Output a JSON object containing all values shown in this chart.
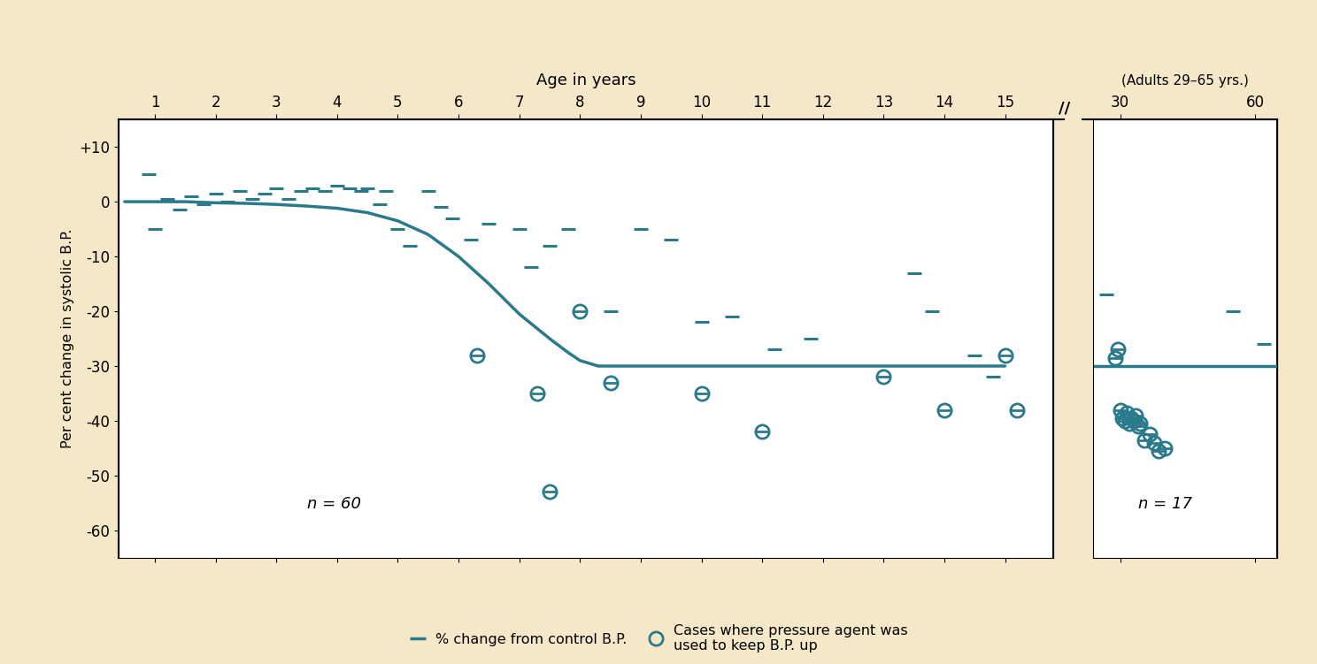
{
  "background_color": "#f5e8c8",
  "plot_bg_color": "#ffffff",
  "color": "#2b7a8c",
  "title_top": "Age in years",
  "title_top2": "(Adults 29–65 yrs.)",
  "ylabel": "Per cent change in systolic B.P.",
  "ylim": [
    -65,
    15
  ],
  "yticks": [
    10,
    0,
    -10,
    -20,
    -30,
    -40,
    -50,
    -60
  ],
  "ytick_labels": [
    "+10",
    "0",
    "-10",
    "-20",
    "-30",
    "-40",
    "-50",
    "-60"
  ],
  "xticks_child": [
    1,
    2,
    3,
    4,
    5,
    6,
    7,
    8,
    9,
    10,
    11,
    12,
    13,
    14,
    15
  ],
  "xticks_adult": [
    30,
    60
  ],
  "n_child_label": "n = 60",
  "n_adult_label": "n = 17",
  "legend_dash_label": "% change from control B.P.",
  "legend_circle_label": "Cases where pressure agent was\nused to keep B.P. up",
  "curve_x": [
    0.5,
    1.0,
    1.5,
    2.0,
    2.5,
    3.0,
    3.5,
    4.0,
    4.5,
    5.0,
    5.5,
    6.0,
    6.5,
    7.0,
    7.5,
    7.8,
    8.0,
    8.3,
    8.6,
    9.0,
    9.5,
    10.0,
    10.5,
    11.0,
    11.5,
    12.0,
    12.5,
    13.0,
    13.5,
    14.0,
    14.5,
    15.0
  ],
  "curve_y": [
    0.0,
    0.0,
    0.0,
    -0.2,
    -0.3,
    -0.5,
    -0.8,
    -1.2,
    -2.0,
    -3.5,
    -6.0,
    -10.0,
    -15.0,
    -20.5,
    -25.0,
    -27.5,
    -29.0,
    -30.0,
    -30.0,
    -30.0,
    -30.0,
    -30.0,
    -30.0,
    -30.0,
    -30.0,
    -30.0,
    -30.0,
    -30.0,
    -30.0,
    -30.0,
    -30.0,
    -30.0
  ],
  "dash_points": [
    [
      0.9,
      5.0
    ],
    [
      1.0,
      -5.0
    ],
    [
      1.2,
      0.5
    ],
    [
      1.4,
      -1.5
    ],
    [
      1.6,
      1.0
    ],
    [
      1.8,
      -0.5
    ],
    [
      2.0,
      1.5
    ],
    [
      2.2,
      0.0
    ],
    [
      2.4,
      2.0
    ],
    [
      2.6,
      0.5
    ],
    [
      2.8,
      1.5
    ],
    [
      3.0,
      2.5
    ],
    [
      3.2,
      0.5
    ],
    [
      3.4,
      2.0
    ],
    [
      3.6,
      2.5
    ],
    [
      3.8,
      2.0
    ],
    [
      4.0,
      3.0
    ],
    [
      4.2,
      2.5
    ],
    [
      4.4,
      2.0
    ],
    [
      4.5,
      2.5
    ],
    [
      4.7,
      -0.5
    ],
    [
      4.8,
      2.0
    ],
    [
      5.0,
      -5.0
    ],
    [
      5.2,
      -8.0
    ],
    [
      5.5,
      2.0
    ],
    [
      5.7,
      -1.0
    ],
    [
      5.9,
      -3.0
    ],
    [
      6.2,
      -7.0
    ],
    [
      6.5,
      -4.0
    ],
    [
      7.0,
      -5.0
    ],
    [
      7.2,
      -12.0
    ],
    [
      7.5,
      -8.0
    ],
    [
      7.8,
      -5.0
    ],
    [
      8.5,
      -20.0
    ],
    [
      9.0,
      -5.0
    ],
    [
      9.5,
      -7.0
    ],
    [
      10.0,
      -22.0
    ],
    [
      10.5,
      -21.0
    ],
    [
      11.2,
      -27.0
    ],
    [
      11.8,
      -25.0
    ],
    [
      13.5,
      -13.0
    ],
    [
      13.8,
      -20.0
    ],
    [
      14.5,
      -28.0
    ],
    [
      14.8,
      -32.0
    ],
    [
      27.0,
      -17.0
    ],
    [
      55.0,
      -20.0
    ],
    [
      62.0,
      -26.0
    ]
  ],
  "circle_points_child": [
    [
      6.3,
      -28.0
    ],
    [
      7.3,
      -35.0
    ],
    [
      7.5,
      -53.0
    ],
    [
      8.0,
      -20.0
    ],
    [
      8.5,
      -33.0
    ],
    [
      10.0,
      -35.0
    ],
    [
      11.0,
      -42.0
    ],
    [
      13.0,
      -32.0
    ],
    [
      14.0,
      -38.0
    ],
    [
      15.0,
      -28.0
    ],
    [
      15.2,
      -38.0
    ]
  ],
  "circle_points_adult": [
    [
      29.5,
      -27.0
    ],
    [
      30.0,
      -38.0
    ],
    [
      30.5,
      -39.5
    ],
    [
      31.0,
      -40.0
    ],
    [
      31.5,
      -38.5
    ],
    [
      32.0,
      -40.5
    ],
    [
      32.5,
      -39.5
    ],
    [
      33.0,
      -40.0
    ],
    [
      33.5,
      -39.0
    ],
    [
      34.0,
      -41.0
    ],
    [
      34.5,
      -40.5
    ],
    [
      35.5,
      -43.5
    ],
    [
      36.5,
      -42.5
    ],
    [
      37.5,
      -44.0
    ],
    [
      38.5,
      -45.5
    ],
    [
      40.0,
      -45.0
    ],
    [
      29.0,
      -28.5
    ]
  ]
}
